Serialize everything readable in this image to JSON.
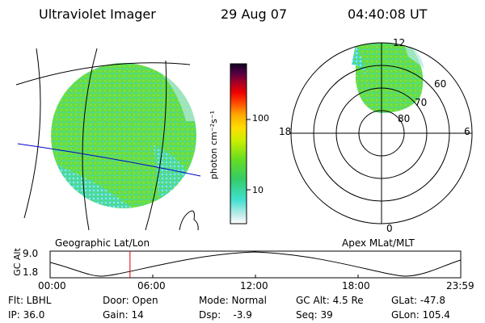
{
  "header": {
    "instrument": "Ultraviolet Imager",
    "date": "29 Aug 07",
    "time": "04:40:08 UT"
  },
  "colorbar": {
    "unit_label": "photon cm⁻²s⁻¹",
    "ticks": [
      {
        "label": "100",
        "value": 100
      },
      {
        "label": "10",
        "value": 10
      }
    ],
    "scale": "log",
    "colors": [
      "#ffffff",
      "#c8ecec",
      "#40e0d0",
      "#33cc66",
      "#66dd22",
      "#ccee00",
      "#ffdd00",
      "#ffaa00",
      "#ff4400",
      "#ee0000",
      "#aa0022",
      "#550044",
      "#110022"
    ]
  },
  "polar_plot": {
    "label": "Apex MLat/MLT",
    "mlt_labels": {
      "top": "12",
      "right": "6",
      "bottom": "0",
      "left": "18"
    },
    "lat_labels": [
      "60",
      "70",
      "80"
    ]
  },
  "geo_plot": {
    "label": "Geographic Lat/Lon"
  },
  "orbit_plot": {
    "ylabel": "GC Alt",
    "y_ticks": [
      "9.0",
      "1.8"
    ],
    "x_ticks": [
      "00:00",
      "06:00",
      "12:00",
      "18:00",
      "23:59"
    ],
    "current_time_hours": 4.67
  },
  "info": {
    "flt": "Flt: LBHL",
    "ip": "IP: 36.0",
    "door": "Door: Open",
    "gain": "Gain: 14",
    "mode": "Mode: Normal",
    "dsp": "Dsp:    -3.9",
    "gcalt": "GC Alt: 4.5 Re",
    "seq": "Seq: 39",
    "glat": "GLat: -47.8",
    "glon": "GLon: 105.4"
  }
}
